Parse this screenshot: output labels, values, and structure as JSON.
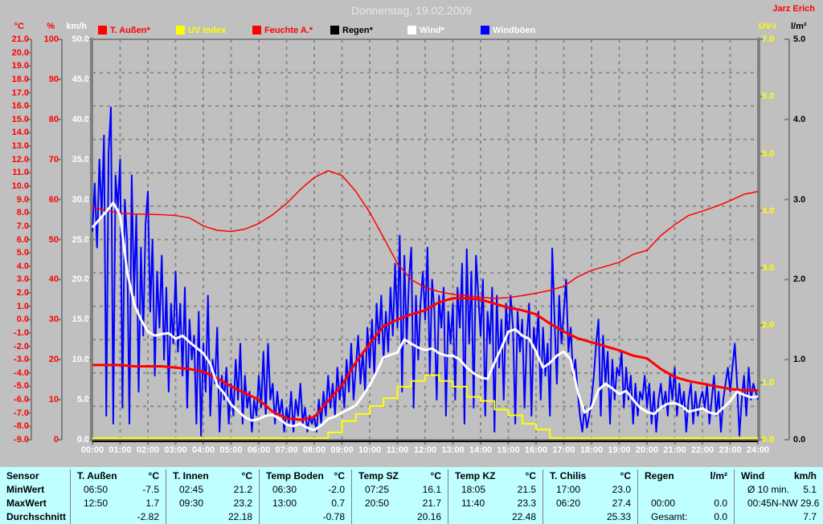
{
  "header": {
    "title": "Donnerstag, 19.02.2009",
    "watermark": "Jarz Erich"
  },
  "colors": {
    "background": "#C0C0C0",
    "grid": "#8A8A8A",
    "axis": "#808080",
    "title": "#E8E8E8",
    "white": "#FFFFFF",
    "red": "#FF0000",
    "yellow": "#FFFF00",
    "blue": "#0000FF",
    "black": "#000000",
    "table_bg": "#C0FFFF",
    "table_line": "#808080"
  },
  "legend": [
    {
      "label": "T. Außen*",
      "swatch": "#FF0000",
      "color": "#FF0000"
    },
    {
      "label": "UV Index",
      "swatch": "#FFFF00",
      "color": "#FFFF00"
    },
    {
      "label": "Feuchte A.*",
      "swatch": "#FF0000",
      "color": "#FF0000"
    },
    {
      "label": "Regen*",
      "swatch": "#000000",
      "color": "#000000"
    },
    {
      "label": "Wind*",
      "swatch": "#FFFFFF",
      "color": "#FFFFFF"
    },
    {
      "label": "Windböen",
      "swatch": "#0000FF",
      "color": "#FFFFFF"
    }
  ],
  "axes": {
    "units": {
      "temp": "°C",
      "percent": "%",
      "kmh": "km/h",
      "uv": "UV-I",
      "lm2": "l/m²"
    },
    "labels": {
      "temp": [
        "21.0",
        "20.0",
        "19.0",
        "18.0",
        "17.0",
        "16.0",
        "15.0",
        "14.0",
        "13.0",
        "12.0",
        "11.0",
        "10.0",
        "9.0",
        "8.0",
        "7.0",
        "6.0",
        "5.0",
        "4.0",
        "3.0",
        "2.0",
        "1.0",
        "0.0",
        "-1.0",
        "-2.0",
        "-3.0",
        "-4.0",
        "-5.0",
        "-6.0",
        "-7.0",
        "-8.0",
        "-9.0"
      ],
      "percent": [
        "100",
        "90",
        "80",
        "70",
        "60",
        "50",
        "40",
        "30",
        "20",
        "10",
        "0"
      ],
      "kmh": [
        "50.0",
        "45.0",
        "40.0",
        "35.0",
        "30.0",
        "25.0",
        "20.0",
        "15.0",
        "10.0",
        "5.0",
        "0.0"
      ],
      "uv": [
        "7.0",
        "6.0",
        "5.0",
        "4.0",
        "3.0",
        "2.0",
        "1.0",
        "0.0"
      ],
      "lm2": [
        "5.0",
        "4.0",
        "3.0",
        "2.0",
        "1.0",
        "0.0"
      ],
      "hours": [
        "00:00",
        "01:00",
        "02:00",
        "03:00",
        "04:00",
        "05:00",
        "06:00",
        "07:00",
        "08:00",
        "09:00",
        "10:00",
        "11:00",
        "12:00",
        "13:00",
        "14:00",
        "15:00",
        "16:00",
        "17:00",
        "18:00",
        "19:00",
        "20:00",
        "21:00",
        "22:00",
        "23:00",
        "24:00"
      ]
    }
  },
  "chart_data": {
    "type": "line",
    "title": "Donnerstag, 19.02.2009",
    "x_unit": "hours",
    "x_range": [
      0,
      24
    ],
    "grid": true,
    "axes_range": {
      "temp": [
        -9,
        21
      ],
      "percent": [
        0,
        100
      ],
      "kmh": [
        0,
        50
      ],
      "uv": [
        0,
        7
      ],
      "lm2": [
        0,
        5
      ]
    },
    "series": [
      {
        "id": "regen",
        "name": "Regen*",
        "axis": "lm2",
        "color": "#000000",
        "width": 2,
        "start": 0,
        "step": 24,
        "values": [
          0,
          0
        ]
      },
      {
        "id": "windboeen",
        "name": "Windböen",
        "axis": "kmh",
        "color": "#0000FF",
        "width": 2,
        "start": 0,
        "step": 0.0833333,
        "values": [
          26,
          32,
          24,
          35,
          28,
          38,
          3,
          36,
          41.5,
          2,
          33,
          29,
          35,
          4,
          30,
          25,
          2,
          33,
          18,
          28,
          6,
          24,
          13,
          27,
          31,
          16,
          25,
          8,
          21,
          14,
          23,
          10,
          19,
          6,
          17,
          12,
          21,
          11,
          17,
          8,
          19,
          4,
          15,
          10,
          13,
          2,
          16,
          0.5,
          12,
          6,
          18,
          3,
          10,
          7,
          14,
          1,
          8,
          5,
          9,
          2,
          7,
          3,
          10,
          5,
          12,
          2,
          8,
          4,
          6,
          1,
          5,
          3,
          8,
          4,
          11,
          3,
          12,
          5,
          7,
          2,
          6,
          3,
          5,
          1,
          4,
          2,
          6,
          1,
          5,
          3,
          7,
          2,
          4,
          1,
          3,
          2,
          3,
          1,
          5,
          2,
          6,
          3,
          8,
          4,
          7,
          3,
          9,
          5,
          8,
          4,
          10,
          6,
          12,
          5,
          9,
          13,
          7,
          11,
          6,
          14,
          9,
          15,
          8,
          17,
          12,
          18,
          10,
          16,
          11,
          19,
          13,
          22,
          14,
          25.5,
          6,
          23,
          12,
          20,
          24,
          4,
          18,
          10,
          17,
          21,
          15,
          24,
          8,
          20,
          16,
          5,
          18,
          14,
          19,
          3,
          16,
          12,
          17,
          5,
          19,
          14,
          22,
          2,
          23.8,
          12,
          21,
          4,
          23,
          18,
          13,
          20,
          3,
          16,
          12,
          19,
          1,
          18,
          9,
          15,
          5,
          17,
          12,
          18,
          14,
          2,
          16,
          11,
          15,
          4,
          13,
          17,
          3,
          14,
          11,
          16,
          5,
          14,
          8,
          12,
          3,
          23.9,
          15,
          7,
          18,
          12,
          16,
          20,
          11,
          14,
          8,
          10,
          6,
          3,
          1,
          4,
          1.5,
          3,
          5,
          8,
          12,
          15,
          3,
          13,
          7,
          11,
          2,
          10,
          5,
          9,
          8,
          11,
          4,
          9,
          5,
          8,
          2,
          7,
          3,
          6,
          5,
          8,
          4,
          7,
          2,
          6,
          1,
          5,
          7,
          4,
          6,
          3,
          8,
          5,
          9,
          3,
          7,
          4,
          6,
          1,
          5,
          7,
          2,
          6,
          3,
          5,
          6,
          4,
          7,
          2,
          5,
          8,
          3,
          6,
          1,
          5,
          7,
          9,
          6,
          9.1,
          12,
          7,
          0.5,
          5,
          8,
          3,
          9,
          5,
          7,
          6,
          5
        ]
      },
      {
        "id": "feuchte",
        "name": "Feuchte A.*",
        "axis": "percent",
        "color": "#FF0000",
        "width": 1.5,
        "start": 0,
        "step": 0.5,
        "values": [
          58.0,
          57.3,
          56.6,
          56.4,
          56.3,
          56.2,
          56.0,
          55.4,
          53.4,
          52.3,
          52.0,
          52.6,
          54.0,
          56.2,
          59.0,
          62.5,
          65.5,
          67.2,
          66.0,
          62.0,
          56.8,
          50.5,
          44.0,
          40.0,
          38.0,
          37.0,
          36.3,
          36.0,
          35.6,
          35.3,
          35.5,
          36.0,
          36.6,
          37.3,
          38.3,
          40.7,
          42.3,
          43.3,
          44.3,
          46.3,
          47.3,
          51.0,
          53.7,
          56.0,
          57.1,
          58.3,
          59.7,
          61.3,
          62.0
        ]
      },
      {
        "id": "t-aussen",
        "name": "T. Außen*",
        "axis": "temp",
        "color": "#FF0000",
        "width": 3,
        "start": 0,
        "step": 0.5,
        "values": [
          -3.4,
          -3.4,
          -3.4,
          -3.5,
          -3.5,
          -3.5,
          -3.6,
          -3.7,
          -3.9,
          -4.4,
          -5.0,
          -5.5,
          -6.0,
          -6.9,
          -7.4,
          -7.5,
          -7.3,
          -6.1,
          -4.9,
          -3.2,
          -1.8,
          -0.5,
          0.0,
          0.4,
          0.7,
          1.3,
          1.6,
          1.6,
          1.5,
          1.2,
          0.9,
          0.7,
          0.4,
          -0.3,
          -0.9,
          -1.4,
          -1.7,
          -2.0,
          -2.3,
          -2.7,
          -2.9,
          -3.7,
          -4.3,
          -4.6,
          -4.8,
          -5.0,
          -5.2,
          -5.3,
          -5.3
        ]
      },
      {
        "id": "uv",
        "name": "UV Index",
        "axis": "uv",
        "color": "#FFFF00",
        "width": 2,
        "start": 0,
        "step": 0.5,
        "step_line": true,
        "values": [
          0,
          0,
          0,
          0,
          0,
          0,
          0,
          0,
          0,
          0,
          0,
          0,
          0,
          0,
          0,
          0,
          0,
          0.1,
          0.3,
          0.42,
          0.56,
          0.7,
          0.9,
          1.0,
          1.1,
          1.0,
          0.9,
          0.72,
          0.65,
          0.5,
          0.4,
          0.25,
          0.15,
          0,
          0,
          0,
          0,
          0,
          0,
          0,
          0,
          0,
          0,
          0,
          0,
          0,
          0,
          0,
          0
        ]
      },
      {
        "id": "wind",
        "name": "Wind*",
        "axis": "kmh",
        "color": "#FFFFFF",
        "width": 3,
        "start": 0,
        "step": 0.25,
        "values": [
          26.5,
          27.5,
          28.5,
          29.6,
          28,
          21,
          17,
          15,
          13.5,
          13,
          13.2,
          13.3,
          12.6,
          13,
          12.2,
          11.5,
          10.8,
          9.5,
          6.8,
          5.8,
          4.4,
          3.6,
          2.8,
          2.4,
          2.6,
          3,
          3.1,
          2.6,
          1.9,
          1.7,
          2,
          1.5,
          1.2,
          1.8,
          2.6,
          2.9,
          3.4,
          3.8,
          4.3,
          5.5,
          6.8,
          8.5,
          10.3,
          10.6,
          10.9,
          12.5,
          12,
          11.5,
          11.2,
          11.4,
          10.8,
          10.5,
          10.5,
          10,
          9,
          8.3,
          7.8,
          7.6,
          9.6,
          11.5,
          13.5,
          13.8,
          13,
          12.6,
          11,
          9,
          9.6,
          10.5,
          11,
          10,
          6,
          3.4,
          4,
          6.2,
          7,
          6.4,
          5.7,
          6.1,
          5,
          4,
          3.5,
          3.2,
          4,
          4.5,
          4.6,
          4.2,
          3.5,
          3.7,
          3.9,
          3.4,
          3.2,
          4,
          4.8,
          6,
          5.6,
          5.3,
          5.4
        ]
      }
    ]
  },
  "table": {
    "row_headers": [
      "Sensor",
      "MinWert",
      "MaxWert",
      "Durchschnitt"
    ],
    "columns": [
      {
        "name": "T. Außen",
        "unit": "°C",
        "min": [
          "06:50",
          "-7.5"
        ],
        "max": [
          "12:50",
          "1.7"
        ],
        "avg": [
          "",
          "-2.82"
        ]
      },
      {
        "name": "T. Innen",
        "unit": "°C",
        "min": [
          "02:45",
          "21.2"
        ],
        "max": [
          "09:30",
          "23.2"
        ],
        "avg": [
          "",
          "22.18"
        ]
      },
      {
        "name": "Temp Boden",
        "unit": "°C",
        "min": [
          "06:30",
          "-2.0"
        ],
        "max": [
          "13:00",
          "0.7"
        ],
        "avg": [
          "",
          "-0.78"
        ]
      },
      {
        "name": "Temp SZ",
        "unit": "°C",
        "min": [
          "07:25",
          "16.1"
        ],
        "max": [
          "20:50",
          "21.7"
        ],
        "avg": [
          "",
          "20.16"
        ]
      },
      {
        "name": "Temp KZ",
        "unit": "°C",
        "min": [
          "18:05",
          "21.5"
        ],
        "max": [
          "11:40",
          "23.3"
        ],
        "avg": [
          "",
          "22.48"
        ]
      },
      {
        "name": "T. Chilis",
        "unit": "°C",
        "min": [
          "17:00",
          "23.0"
        ],
        "max": [
          "06:20",
          "27.4"
        ],
        "avg": [
          "",
          "25.33"
        ]
      },
      {
        "name": "Regen",
        "unit": "l/m²",
        "min": [
          "",
          ""
        ],
        "max": [
          "00:00",
          "0.0"
        ],
        "avg": [
          "Gesamt:",
          "0.0"
        ]
      },
      {
        "name": "Wind",
        "unit": "km/h",
        "min": [
          "Ø 10 min.",
          "5.1"
        ],
        "max": [
          "00:45",
          "N-NW 29.6"
        ],
        "avg": [
          "",
          "7.7"
        ]
      }
    ]
  }
}
